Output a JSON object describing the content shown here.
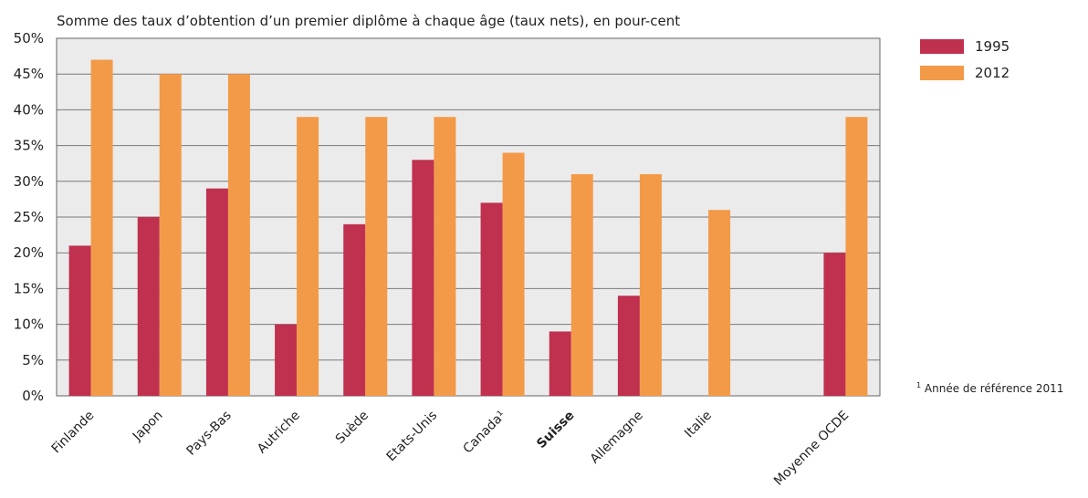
{
  "colors": {
    "s1995": "#c0304f",
    "s2012": "#f39a48",
    "plot_bg": "#ebebeb",
    "grid": "#7a7a7a"
  },
  "chart_data": {
    "type": "bar",
    "title": "Somme des taux d’obtention d’un premier diplôme à chaque âge (taux nets), en pour-cent",
    "categories": [
      "Finlande",
      "Japon",
      "Pays-Bas",
      "Autriche",
      "Suède",
      "Etats-Unis",
      "Canada¹",
      "Suisse",
      "Allemagne",
      "Italie",
      "",
      "Moyenne OCDE"
    ],
    "emphasized_category": "Suisse",
    "series": [
      {
        "name": "1995",
        "values": [
          21,
          25,
          29,
          10,
          24,
          33,
          27,
          9,
          14,
          null,
          null,
          20
        ]
      },
      {
        "name": "2012",
        "values": [
          47,
          45,
          45,
          39,
          39,
          39,
          34,
          31,
          31,
          26,
          null,
          39
        ]
      }
    ],
    "ylim": [
      0,
      50
    ],
    "yticks": [
      "0%",
      "5%",
      "10%",
      "15%",
      "20%",
      "25%",
      "30%",
      "35%",
      "40%",
      "45%",
      "50%"
    ],
    "grid": true,
    "legend_position": "right",
    "footnote": "Année de référence 2011",
    "footnote_marker": "1"
  }
}
